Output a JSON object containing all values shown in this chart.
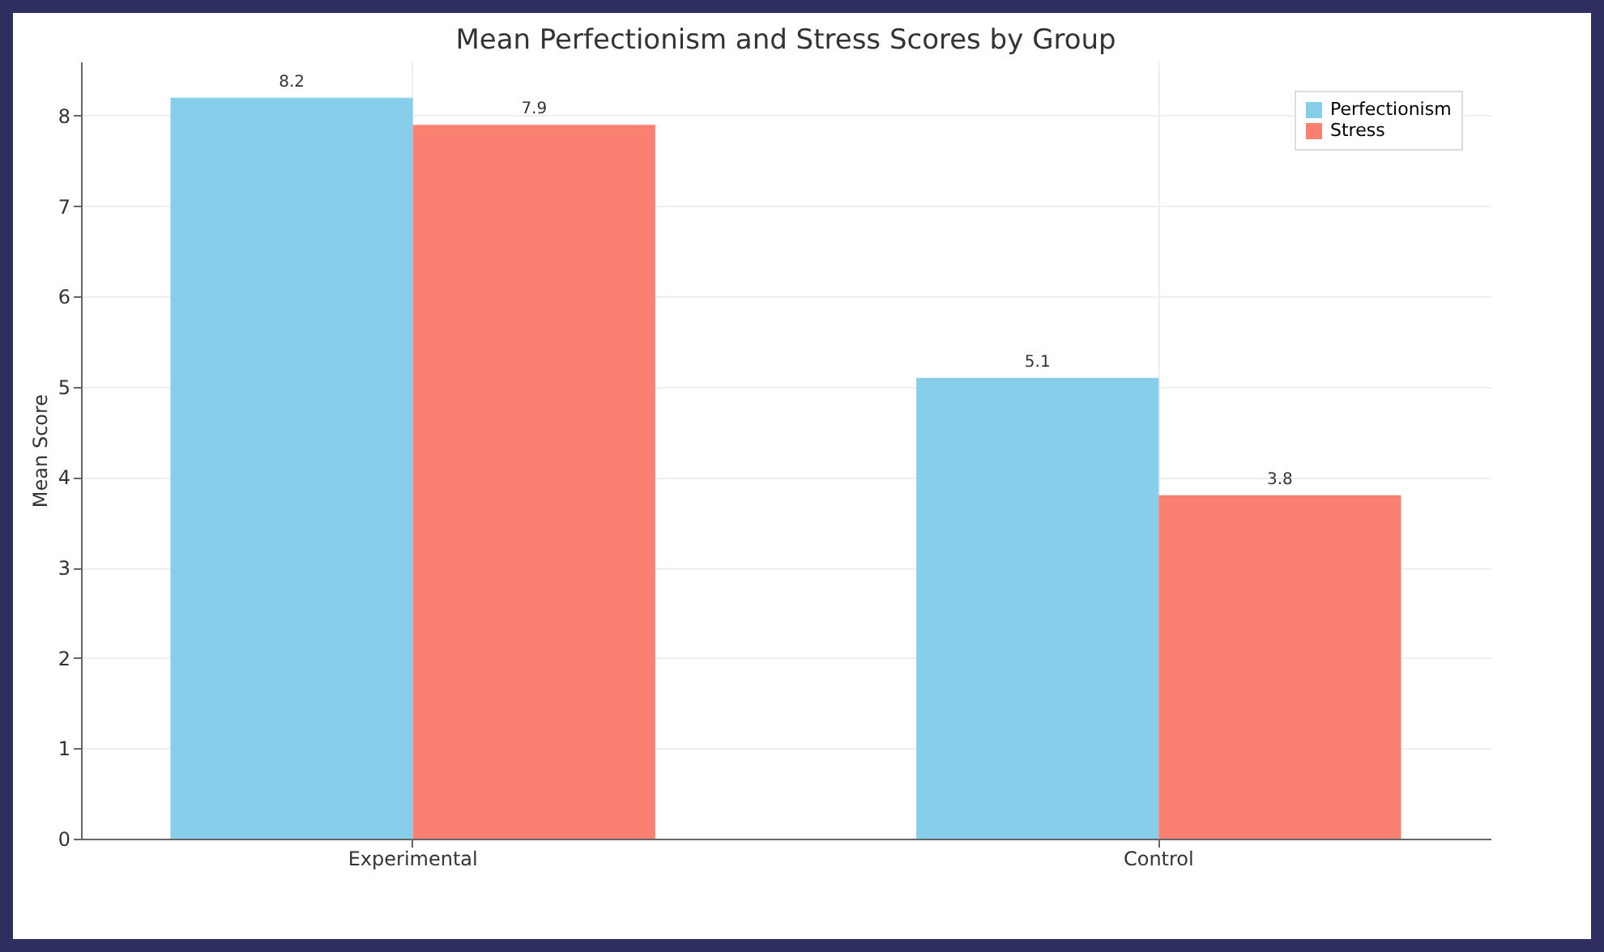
{
  "chart_data": {
    "type": "bar",
    "title": "Mean Perfectionism and Stress Scores by Group",
    "ylabel": "Mean Score",
    "categories": [
      "Experimental",
      "Control"
    ],
    "series": [
      {
        "name": "Perfectionism",
        "color": "#87ceeb",
        "values": [
          8.2,
          5.1
        ]
      },
      {
        "name": "Stress",
        "color": "#fa8072",
        "values": [
          7.9,
          3.8
        ]
      }
    ],
    "ylim": [
      0,
      8.6
    ],
    "yticks": [
      0,
      1,
      2,
      3,
      4,
      5,
      6,
      7,
      8
    ],
    "grid": true,
    "legend": "top right",
    "data_labels": true
  }
}
